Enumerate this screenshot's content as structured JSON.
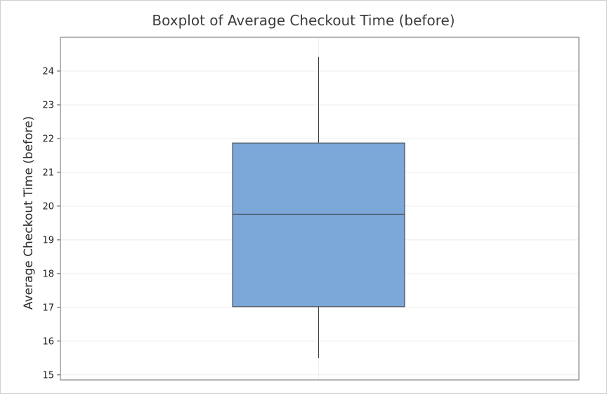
{
  "chart_data": {
    "type": "boxplot",
    "title": "Boxplot of Average Checkout Time (before)",
    "xlabel": "",
    "ylabel": "Average Checkout Time (before)",
    "ylim": [
      14.85,
      25.0
    ],
    "yticks": [
      15,
      16,
      17,
      18,
      19,
      20,
      21,
      22,
      23,
      24
    ],
    "grid": true,
    "box": {
      "min": 15.5,
      "q1": 17.02,
      "median": 19.76,
      "q3": 21.87,
      "max": 24.42
    },
    "colors": {
      "box_fill": "#7ba7d9",
      "box_stroke": "#3a3a3a",
      "whisker": "#3a3a3a",
      "gridline": "#eeeeee",
      "plot_border": "#6e6e6e",
      "title": "#3c3c3c"
    }
  }
}
